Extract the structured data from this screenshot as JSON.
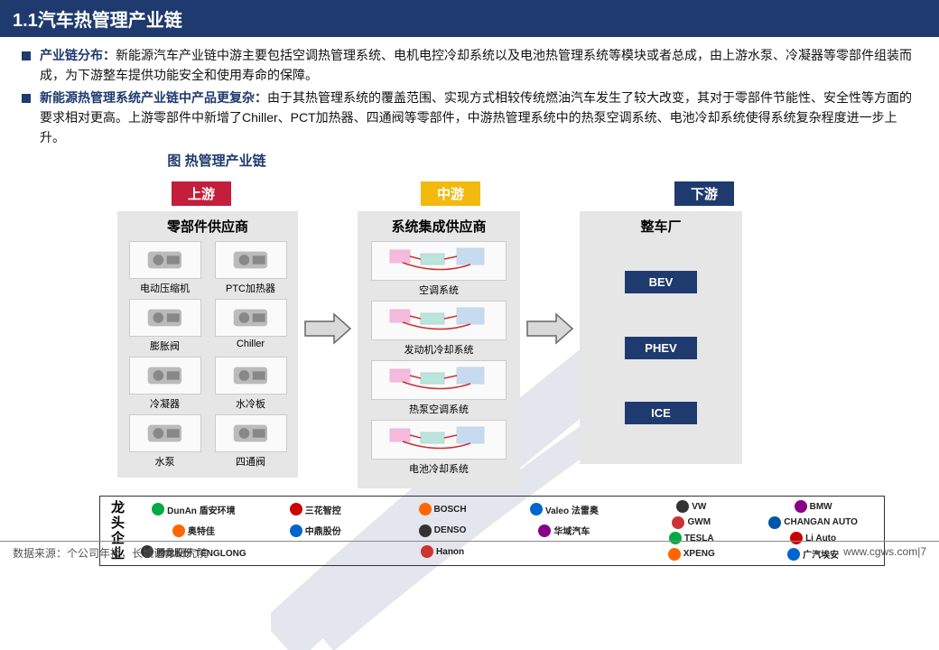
{
  "title": "1.1汽车热管理产业链",
  "bullets": [
    {
      "lead": "产业链分布：",
      "text": "新能源汽车产业链中游主要包括空调热管理系统、电机电控冷却系统以及电池热管理系统等模块或者总成，由上游水泵、冷凝器等零部件组装而成，为下游整车提供功能安全和使用寿命的保障。"
    },
    {
      "lead": "新能源热管理系统产业链中产品更复杂：",
      "text": "由于其热管理系统的覆盖范围、实现方式相较传统燃油汽车发生了较大改变，其对于零部件节能性、安全性等方面的要求相对更高。上游零部件中新增了Chiller、PCT加热器、四通阀等零部件，中游热管理系统中的热泵空调系统、电池冷却系统使得系统复杂程度进一步上升。"
    }
  ],
  "fig_title": "图 热管理产业链",
  "stages": {
    "up": "上游",
    "mid": "中游",
    "down": "下游"
  },
  "col_titles": {
    "up": "零部件供应商",
    "mid": "系统集成供应商",
    "down": "整车厂"
  },
  "upstream_items": [
    "电动压缩机",
    "PTC加热器",
    "膨胀阀",
    "Chiller",
    "冷凝器",
    "水冷板",
    "水泵",
    "四通阀"
  ],
  "midstream_items": [
    "空调系统",
    "发动机冷却系统",
    "热泵空调系统",
    "电池冷却系统"
  ],
  "downstream_items": [
    "BEV",
    "PHEV",
    "ICE"
  ],
  "companies_label": "龙头企业",
  "companies": {
    "up": [
      "DunAn 盾安环境",
      "三花智控",
      "奥特佳",
      "中鼎股份",
      "腾龙股份 TENGLONG",
      ""
    ],
    "mid": [
      "BOSCH",
      "Valeo 法雷奥",
      "DENSO",
      "华域汽车",
      "Hanon",
      ""
    ],
    "down": [
      "VW",
      "BMW",
      "GWM",
      "CHANGAN AUTO",
      "TESLA",
      "Li Auto",
      "XPENG",
      "广汽埃安"
    ]
  },
  "colors": {
    "header_bg": "#1f3a6e",
    "up_label_bg": "#c41e3a",
    "mid_label_bg": "#f2b90f",
    "down_label_bg": "#1f3a6e",
    "col_bg": "#e6e6e6",
    "chip_bg": "#1f3a6e",
    "arrow_fill": "#d9d9d9",
    "arrow_stroke": "#666"
  },
  "footer": {
    "source": "数据来源：个公司年报，长城证券研究院",
    "site": "www.cgws.com",
    "page": "7"
  }
}
